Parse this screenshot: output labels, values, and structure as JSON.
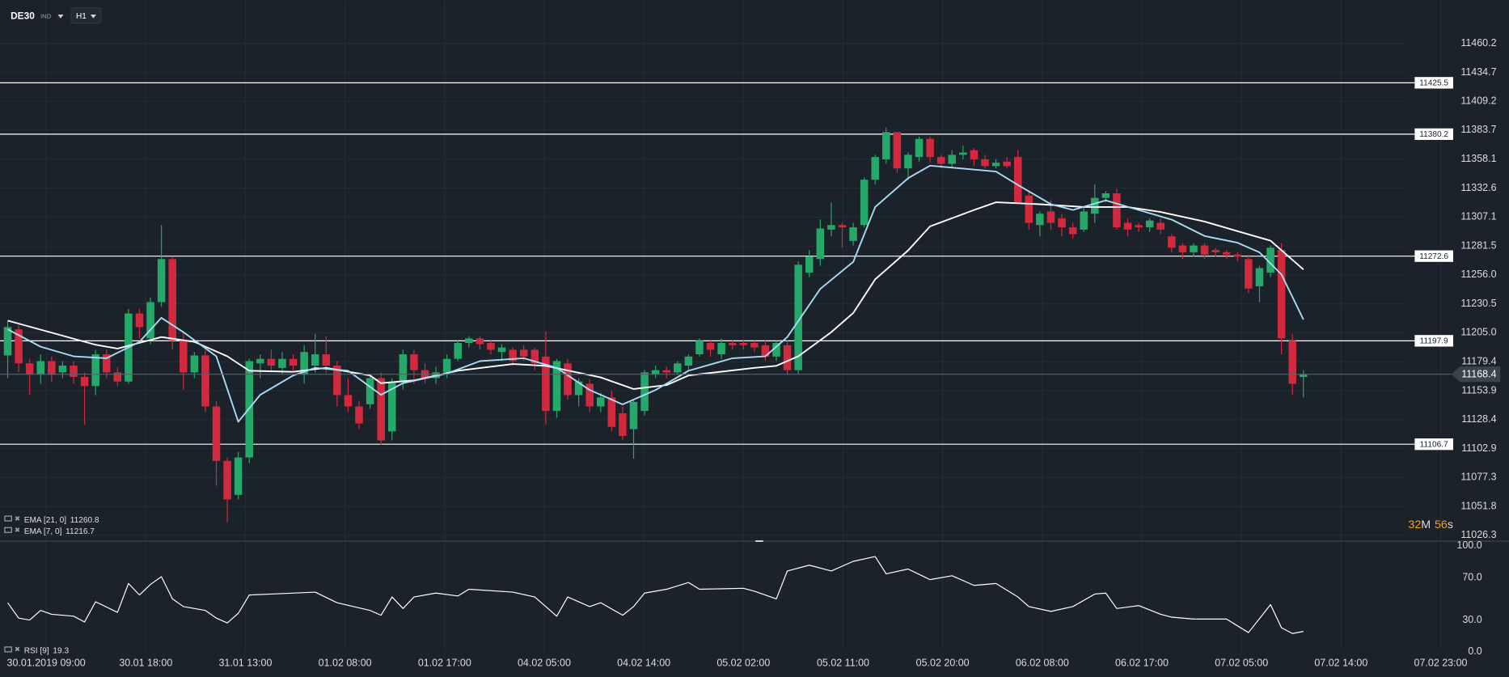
{
  "header": {
    "symbol": "DE30",
    "badge": "IND",
    "timeframe": "H1"
  },
  "countdown": {
    "minutes": "32",
    "minutes_unit": "M",
    "seconds": "56",
    "seconds_unit": "s"
  },
  "chart_data": [
    {
      "type": "candlestick",
      "up_color": "#26a86a",
      "down_color": "#d12a3f",
      "open": [
        11185,
        11208,
        11178,
        11168,
        11180,
        11170,
        11176,
        11166,
        11158,
        11186,
        11170,
        11162,
        11222,
        11200,
        11232,
        11270,
        11198,
        11170,
        11185,
        11140,
        11092,
        11062,
        11095,
        11178,
        11182,
        11174,
        11182,
        11168,
        11176,
        11186,
        11176,
        11150,
        11140,
        11142,
        11165,
        11118,
        11162,
        11186,
        11172,
        11165,
        11170,
        11182,
        11196,
        11200,
        11196,
        11188,
        11190,
        11190,
        11190,
        11184,
        11136,
        11178,
        11150,
        11160,
        11140,
        11148,
        11134,
        11120,
        11136,
        11168,
        11172,
        11170,
        11176,
        11186,
        11196,
        11186,
        11196,
        11196,
        11196,
        11194,
        11184,
        11194,
        11172,
        11258,
        11270,
        11296,
        11300,
        11286,
        11300,
        11340,
        11358,
        11382,
        11350,
        11360,
        11376,
        11360,
        11354,
        11362,
        11366,
        11358,
        11352,
        11356,
        11360,
        11326,
        11300,
        11312,
        11306,
        11298,
        11296,
        11310,
        11324,
        11328,
        11302,
        11300,
        11298,
        11302,
        11290,
        11282,
        11276,
        11282,
        11278,
        11276,
        11274,
        11270,
        11246,
        11258,
        11278,
        11198,
        11166
      ],
      "high": [
        11215,
        11212,
        11182,
        11186,
        11184,
        11180,
        11180,
        11170,
        11190,
        11190,
        11175,
        11226,
        11226,
        11236,
        11300,
        11272,
        11205,
        11188,
        11190,
        11145,
        11095,
        11100,
        11182,
        11186,
        11190,
        11188,
        11186,
        11194,
        11204,
        11202,
        11180,
        11165,
        11145,
        11168,
        11170,
        11165,
        11190,
        11190,
        11178,
        11175,
        11186,
        11198,
        11202,
        11202,
        11198,
        11195,
        11192,
        11194,
        11192,
        11206,
        11182,
        11182,
        11165,
        11164,
        11152,
        11154,
        11140,
        11146,
        11172,
        11176,
        11175,
        11180,
        11186,
        11200,
        11198,
        11200,
        11198,
        11198,
        11198,
        11198,
        11198,
        11198,
        11268,
        11278,
        11305,
        11320,
        11302,
        11302,
        11342,
        11362,
        11386,
        11382,
        11364,
        11378,
        11378,
        11362,
        11366,
        11370,
        11368,
        11362,
        11358,
        11360,
        11366,
        11330,
        11312,
        11322,
        11310,
        11302,
        11316,
        11336,
        11330,
        11332,
        11306,
        11302,
        11306,
        11306,
        11292,
        11284,
        11284,
        11284,
        11280,
        11278,
        11276,
        11274,
        11264,
        11282,
        11284,
        11204,
        11172
      ],
      "low": [
        11165,
        11170,
        11150,
        11160,
        11162,
        11165,
        11160,
        11124,
        11150,
        11165,
        11158,
        11160,
        11200,
        11195,
        11228,
        11190,
        11155,
        11165,
        11135,
        11070,
        11038,
        11058,
        11090,
        11165,
        11170,
        11168,
        11170,
        11160,
        11170,
        11170,
        11140,
        11135,
        11120,
        11138,
        11106,
        11110,
        11155,
        11160,
        11160,
        11160,
        11165,
        11180,
        11192,
        11190,
        11186,
        11180,
        11176,
        11180,
        11172,
        11124,
        11130,
        11146,
        11140,
        11135,
        11135,
        11118,
        11110,
        11094,
        11132,
        11165,
        11165,
        11168,
        11172,
        11184,
        11184,
        11182,
        11190,
        11190,
        11188,
        11180,
        11180,
        11168,
        11168,
        11254,
        11264,
        11290,
        11280,
        11282,
        11298,
        11336,
        11354,
        11346,
        11340,
        11356,
        11355,
        11350,
        11350,
        11358,
        11352,
        11350,
        11350,
        11350,
        11318,
        11296,
        11290,
        11296,
        11290,
        11288,
        11294,
        11302,
        11320,
        11296,
        11290,
        11294,
        11294,
        11292,
        11276,
        11270,
        11272,
        11270,
        11272,
        11270,
        11268,
        11240,
        11232,
        11254,
        11186,
        11150,
        11148
      ],
      "close": [
        11210,
        11178,
        11168,
        11180,
        11168,
        11176,
        11166,
        11158,
        11186,
        11170,
        11162,
        11222,
        11210,
        11232,
        11270,
        11198,
        11170,
        11185,
        11140,
        11092,
        11058,
        11095,
        11180,
        11182,
        11176,
        11182,
        11176,
        11188,
        11186,
        11176,
        11150,
        11140,
        11125,
        11165,
        11110,
        11162,
        11186,
        11172,
        11165,
        11170,
        11182,
        11196,
        11200,
        11195,
        11190,
        11192,
        11180,
        11184,
        11178,
        11136,
        11180,
        11150,
        11162,
        11140,
        11148,
        11122,
        11114,
        11144,
        11170,
        11172,
        11170,
        11178,
        11184,
        11198,
        11190,
        11196,
        11194,
        11194,
        11192,
        11184,
        11196,
        11172,
        11265,
        11272,
        11297,
        11300,
        11298,
        11298,
        11340,
        11360,
        11382,
        11350,
        11362,
        11376,
        11360,
        11354,
        11362,
        11364,
        11358,
        11352,
        11355,
        11352,
        11320,
        11302,
        11310,
        11302,
        11298,
        11292,
        11312,
        11324,
        11328,
        11298,
        11296,
        11298,
        11304,
        11296,
        11280,
        11276,
        11282,
        11274,
        11276,
        11274,
        11272,
        11244,
        11262,
        11280,
        11200,
        11160,
        11168.4
      ],
      "ylim": [
        11021.2,
        11498.4
      ],
      "yticks": [
        11026.3,
        11051.8,
        11077.3,
        11102.9,
        11128.4,
        11153.9,
        11179.4,
        {
          "value": 11205,
          "label": "11205.0"
        },
        11230.5,
        {
          "value": 11256,
          "label": "11256.0"
        },
        11281.5,
        11307.1,
        11332.6,
        11358.1,
        11383.7,
        11409.2,
        11434.7,
        11460.2
      ],
      "grid": true,
      "levels": [
        11425.5,
        11380.2,
        11272.6,
        11197.9,
        11106.7
      ],
      "level_color": "#ffffff",
      "series": [
        {
          "name": "EMA [21, 0]",
          "color": "#ffffff",
          "x": [
            0,
            8,
            10,
            14,
            17,
            20,
            22,
            26,
            29,
            33,
            34,
            37,
            41,
            46,
            49,
            54,
            57,
            60,
            62,
            68,
            70,
            72,
            75,
            77,
            79,
            82,
            84,
            88,
            90,
            94,
            98,
            102,
            105,
            109,
            112,
            115,
            118
          ],
          "values": [
            11215.7,
            11194.4,
            11191.0,
            11201.2,
            11197.0,
            11184.2,
            11171.5,
            11170.6,
            11174.0,
            11167.3,
            11160.5,
            11163.0,
            11171.5,
            11177.4,
            11175.8,
            11165.6,
            11155.4,
            11158.8,
            11167.3,
            11174.0,
            11175.8,
            11184.2,
            11205.5,
            11222.4,
            11252.2,
            11277.6,
            11298.9,
            11313.3,
            11320.1,
            11318.4,
            11315.9,
            11315.9,
            11311.6,
            11303.1,
            11294.6,
            11286.2,
            11260.8
          ]
        },
        {
          "name": "EMA [7, 0]",
          "color": "#a9dbf2",
          "x": [
            0,
            3,
            6,
            9,
            12,
            14,
            16,
            19,
            21,
            23,
            26,
            28,
            31,
            34,
            36,
            40,
            43,
            47,
            50,
            53,
            56,
            59,
            62,
            66,
            69,
            71,
            74,
            77,
            79,
            82,
            84,
            87,
            90,
            92,
            95,
            97,
            100,
            103,
            106,
            109,
            112,
            114,
            116,
            118
          ],
          "values": [
            11208.0,
            11192.7,
            11184.2,
            11182.5,
            11197.0,
            11218.2,
            11205.5,
            11184.2,
            11126.5,
            11150.3,
            11167.3,
            11174.0,
            11171.5,
            11150.3,
            11160.5,
            11169.0,
            11180.0,
            11182.5,
            11174.0,
            11154.5,
            11141.8,
            11154.5,
            11171.5,
            11182.5,
            11184.2,
            11201.2,
            11243.7,
            11267.5,
            11315.9,
            11341.3,
            11352.4,
            11349.8,
            11347.3,
            11335.4,
            11318.4,
            11313.3,
            11321.8,
            11313.3,
            11304.8,
            11290.4,
            11284.4,
            11275.9,
            11256.4,
            11216.7
          ]
        }
      ],
      "time_labels": [
        "30.01.2019 09:00",
        "30.01 18:00",
        "31.01 13:00",
        "01.02 08:00",
        "01.02 17:00",
        "04.02 05:00",
        "04.02 14:00",
        "05.02 02:00",
        "05.02 11:00",
        "05.02 20:00",
        "06.02 08:00",
        "06.02 17:00",
        "07.02 05:00",
        "07.02 14:00",
        "07.02 23:00"
      ]
    },
    {
      "type": "line",
      "name": "RSI [9]",
      "color": "#ffffff",
      "x": [
        0,
        1,
        2,
        3,
        4,
        6,
        7,
        8,
        10,
        11,
        12,
        13,
        14,
        15,
        16,
        18,
        19,
        20,
        21,
        22,
        24,
        28,
        30,
        33,
        34,
        35,
        36,
        37,
        39,
        41,
        42,
        46,
        48,
        50,
        51,
        53,
        54,
        56,
        57,
        58,
        60,
        62,
        63,
        67,
        68,
        70,
        71,
        73,
        75,
        77,
        79,
        80,
        82,
        84,
        86,
        88,
        90,
        92,
        93,
        95,
        97,
        99,
        100,
        101,
        103,
        105,
        106,
        108,
        111,
        113,
        115,
        116,
        117,
        118
      ],
      "values": [
        46.4,
        31.8,
        30.0,
        39.1,
        35.5,
        33.6,
        28.2,
        47.3,
        37.3,
        64.5,
        53.6,
        63.6,
        70.9,
        50.0,
        42.7,
        39.1,
        31.8,
        27.3,
        36.4,
        53.6,
        54.5,
        56.4,
        46.4,
        39.1,
        34.5,
        51.8,
        40.9,
        51.8,
        55.5,
        52.7,
        59.1,
        56.4,
        51.8,
        33.6,
        51.8,
        42.7,
        46.4,
        34.5,
        42.7,
        55.5,
        59.1,
        65.5,
        59.1,
        60.0,
        57.3,
        50.0,
        76.4,
        81.8,
        76.4,
        85.5,
        90.0,
        73.6,
        78.2,
        68.2,
        71.8,
        62.7,
        64.5,
        51.8,
        42.7,
        38.2,
        42.7,
        54.5,
        55.5,
        40.9,
        43.6,
        35.5,
        32.7,
        30.9,
        30.9,
        18.2,
        44.5,
        22.7,
        17.3,
        19.3
      ],
      "ylim": [
        0,
        100
      ],
      "yticks": [
        {
          "value": 0,
          "label": "0.0"
        },
        {
          "value": 30,
          "label": "30.0"
        },
        {
          "value": 70,
          "label": "70.0"
        },
        {
          "value": 100,
          "label": "100.0"
        }
      ]
    }
  ]
}
